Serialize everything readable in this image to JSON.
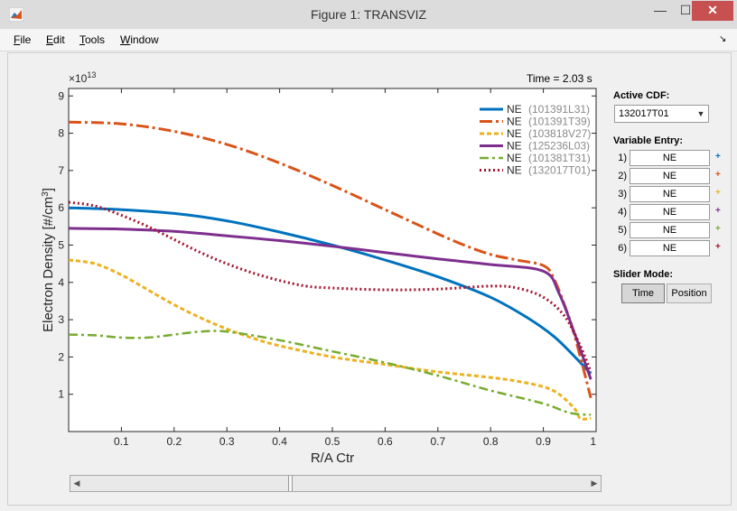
{
  "window": {
    "title": "Figure 1: TRANSVIZ",
    "min_glyph": "—",
    "max_glyph": "☐",
    "close_glyph": "✕"
  },
  "menu": [
    {
      "ul": "F",
      "rest": "ile"
    },
    {
      "ul": "E",
      "rest": "dit"
    },
    {
      "ul": "T",
      "rest": "ools"
    },
    {
      "ul": "W",
      "rest": "indow"
    }
  ],
  "dock_icon": "arrow-icon",
  "time_label": "Time = 2.03 s",
  "panel": {
    "active_cdf_label": "Active CDF:",
    "active_cdf_value": "132017T01",
    "variable_entry_label": "Variable Entry:",
    "entries": [
      {
        "num": "1)",
        "value": "NE",
        "plus": "+",
        "color": "#0072BD"
      },
      {
        "num": "2)",
        "value": "NE",
        "plus": "+",
        "color": "#D95319"
      },
      {
        "num": "3)",
        "value": "NE",
        "plus": "+",
        "color": "#EDB120"
      },
      {
        "num": "4)",
        "value": "NE",
        "plus": "+",
        "color": "#7E2F8E"
      },
      {
        "num": "5)",
        "value": "NE",
        "plus": "+",
        "color": "#77AC30"
      },
      {
        "num": "6)",
        "value": "NE",
        "plus": "+",
        "color": "#A2142F"
      }
    ],
    "slider_mode_label": "Slider Mode:",
    "mode_time": "Time",
    "mode_position": "Position"
  },
  "slider": {
    "value_fraction": 0.41
  },
  "chart_data": {
    "type": "line",
    "xlabel": "R/A Ctr",
    "ylabel": "Electron Density [#/cm",
    "ylabel_sup": "3",
    "ylabel_end": "]",
    "exponent_label": "×10",
    "exponent_sup": "13",
    "xlim": [
      0,
      1
    ],
    "ylim": [
      0,
      9.2
    ],
    "xticks": [
      0.1,
      0.2,
      0.3,
      0.4,
      0.5,
      0.6,
      0.7,
      0.8,
      0.9,
      1
    ],
    "xtick_labels": [
      "0.1",
      "0.2",
      "0.3",
      "0.4",
      "0.5",
      "0.6",
      "0.7",
      "0.8",
      "0.9",
      "1"
    ],
    "yticks": [
      1,
      2,
      3,
      4,
      5,
      6,
      7,
      8,
      9
    ],
    "ytick_labels": [
      "1",
      "2",
      "3",
      "4",
      "5",
      "6",
      "7",
      "8",
      "9"
    ],
    "grid": false,
    "legend_placement": "top-right",
    "series": [
      {
        "name": "NE",
        "run": "(101391L31)",
        "color": "#0072BD",
        "dash": "",
        "width": 3,
        "x": [
          0,
          0.1,
          0.2,
          0.3,
          0.4,
          0.5,
          0.6,
          0.7,
          0.8,
          0.87,
          0.92,
          0.96,
          0.99
        ],
        "y": [
          6.0,
          5.95,
          5.85,
          5.65,
          5.35,
          5.0,
          4.6,
          4.15,
          3.6,
          3.05,
          2.55,
          2.0,
          1.55
        ]
      },
      {
        "name": "NE",
        "run": "(101391T39)",
        "color": "#D95319",
        "dash": "14 4 3 4",
        "width": 3,
        "x": [
          0,
          0.1,
          0.2,
          0.3,
          0.4,
          0.5,
          0.6,
          0.7,
          0.75,
          0.8,
          0.85,
          0.9,
          0.92,
          0.95,
          0.97,
          0.99
        ],
        "y": [
          8.3,
          8.25,
          8.05,
          7.7,
          7.2,
          6.6,
          5.95,
          5.3,
          5.0,
          4.75,
          4.6,
          4.45,
          4.1,
          3.0,
          2.0,
          0.9
        ]
      },
      {
        "name": "NE",
        "run": "(103818V27)",
        "color": "#EDB120",
        "dash": "5 3",
        "width": 3,
        "x": [
          0,
          0.05,
          0.1,
          0.15,
          0.2,
          0.25,
          0.3,
          0.35,
          0.4,
          0.5,
          0.6,
          0.7,
          0.8,
          0.85,
          0.9,
          0.93,
          0.96,
          0.97,
          0.99
        ],
        "y": [
          4.6,
          4.5,
          4.2,
          3.8,
          3.4,
          3.05,
          2.75,
          2.5,
          2.3,
          2.0,
          1.8,
          1.6,
          1.45,
          1.35,
          1.2,
          1.0,
          0.6,
          0.35,
          0.35
        ]
      },
      {
        "name": "NE",
        "run": "(125236L03)",
        "color": "#7E2F8E",
        "dash": "",
        "width": 3,
        "x": [
          0,
          0.1,
          0.2,
          0.3,
          0.4,
          0.5,
          0.6,
          0.7,
          0.8,
          0.9,
          0.93,
          0.96,
          0.99
        ],
        "y": [
          5.45,
          5.43,
          5.37,
          5.25,
          5.12,
          4.97,
          4.8,
          4.63,
          4.48,
          4.3,
          3.7,
          2.6,
          1.4
        ]
      },
      {
        "name": "NE",
        "run": "(101381T31)",
        "color": "#77AC30",
        "dash": "10 4 3 4",
        "width": 2.5,
        "x": [
          0,
          0.05,
          0.1,
          0.15,
          0.2,
          0.25,
          0.3,
          0.4,
          0.5,
          0.6,
          0.7,
          0.8,
          0.9,
          0.95,
          0.99
        ],
        "y": [
          2.6,
          2.58,
          2.52,
          2.52,
          2.6,
          2.68,
          2.68,
          2.45,
          2.15,
          1.85,
          1.5,
          1.1,
          0.75,
          0.5,
          0.45
        ]
      },
      {
        "name": "NE",
        "run": "(132017T01)",
        "color": "#A2142F",
        "dash": "2 3",
        "width": 3,
        "x": [
          0,
          0.05,
          0.1,
          0.15,
          0.2,
          0.25,
          0.3,
          0.35,
          0.4,
          0.45,
          0.5,
          0.6,
          0.7,
          0.8,
          0.85,
          0.9,
          0.94,
          0.97,
          0.99
        ],
        "y": [
          6.15,
          6.05,
          5.8,
          5.5,
          5.15,
          4.8,
          4.5,
          4.25,
          4.05,
          3.9,
          3.85,
          3.8,
          3.82,
          3.9,
          3.85,
          3.6,
          3.1,
          2.3,
          1.6
        ]
      }
    ]
  }
}
